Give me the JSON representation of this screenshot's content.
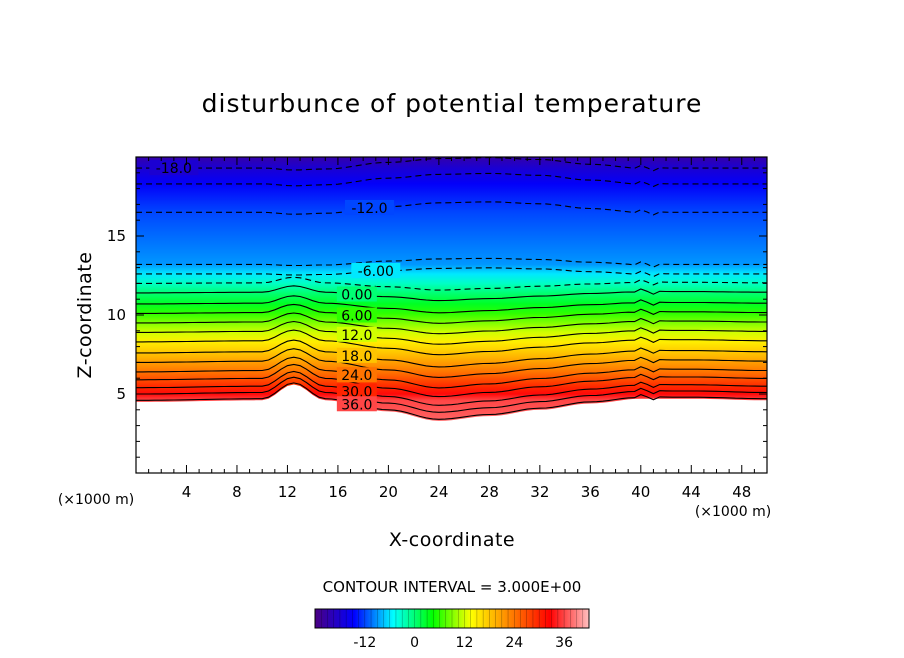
{
  "chart_data": {
    "type": "heatmap",
    "title": "disturbunce of potential temperature",
    "xlabel": "X-coordinate",
    "ylabel": "Z-coordinate",
    "x_unit": "(×1000 m)",
    "xlim": [
      0,
      50
    ],
    "ylim": [
      0,
      20
    ],
    "x_ticks": [
      "4",
      "8",
      "12",
      "16",
      "20",
      "24",
      "28",
      "32",
      "36",
      "40",
      "44",
      "48"
    ],
    "y_ticks": [
      "5",
      "10",
      "15"
    ],
    "contour_interval_text": "CONTOUR INTERVAL = 3.000E+00",
    "contour_labels": [
      "-18.0",
      "-12.0",
      "-6.00",
      "0.00",
      "6.00",
      "12.0",
      "18.0",
      "24.0",
      "30.0",
      "36.0"
    ],
    "colorbar": {
      "range": [
        -24,
        42
      ],
      "ticks": [
        "-12",
        "0",
        "12",
        "24",
        "36"
      ],
      "colors": [
        "#4b0082",
        "#0000ff",
        "#00ffff",
        "#00ff00",
        "#ffff00",
        "#ff8000",
        "#ff0000",
        "#ffc0c0"
      ]
    },
    "profile": [
      {
        "x": 0,
        "terrain": 4.5,
        "top_shift": 0
      },
      {
        "x": 10,
        "terrain": 4.6,
        "top_shift": 0
      },
      {
        "x": 12.5,
        "terrain": 5.6,
        "top_shift": 0.2
      },
      {
        "x": 15,
        "terrain": 4.6,
        "top_shift": 0.1
      },
      {
        "x": 20,
        "terrain": 3.9,
        "top_shift": -0.6
      },
      {
        "x": 24,
        "terrain": 3.3,
        "top_shift": -1.0
      },
      {
        "x": 28,
        "terrain": 3.6,
        "top_shift": -1.1
      },
      {
        "x": 32,
        "terrain": 4.0,
        "top_shift": -0.9
      },
      {
        "x": 36,
        "terrain": 4.4,
        "top_shift": -0.4
      },
      {
        "x": 40,
        "terrain": 4.7,
        "top_shift": 0
      },
      {
        "x": 44,
        "terrain": 4.7,
        "top_shift": 0
      },
      {
        "x": 50,
        "terrain": 4.6,
        "top_shift": 0
      }
    ],
    "contours": [
      {
        "value": -18,
        "z": 19.3,
        "dashed": true,
        "labeled": true
      },
      {
        "value": -15,
        "z": 18.3,
        "dashed": true,
        "labeled": false
      },
      {
        "value": -12,
        "z": 16.5,
        "dashed": true,
        "labeled": true
      },
      {
        "value": -9,
        "z": 13.2,
        "dashed": true,
        "labeled": false
      },
      {
        "value": -6,
        "z": 12.6,
        "dashed": true,
        "labeled": true
      },
      {
        "value": -3,
        "z": 12.0,
        "dashed": true,
        "labeled": false
      },
      {
        "value": 0,
        "z": 11.4,
        "dashed": false,
        "labeled": true
      },
      {
        "value": 3,
        "z": 10.7,
        "dashed": false,
        "labeled": false
      },
      {
        "value": 6,
        "z": 10.1,
        "dashed": false,
        "labeled": true
      },
      {
        "value": 9,
        "z": 9.5,
        "dashed": false,
        "labeled": false
      },
      {
        "value": 12,
        "z": 8.9,
        "dashed": false,
        "labeled": true
      },
      {
        "value": 15,
        "z": 8.3,
        "dashed": false,
        "labeled": false
      },
      {
        "value": 18,
        "z": 7.6,
        "dashed": false,
        "labeled": true
      },
      {
        "value": 21,
        "z": 7.0,
        "dashed": false,
        "labeled": false
      },
      {
        "value": 24,
        "z": 6.4,
        "dashed": false,
        "labeled": true
      },
      {
        "value": 27,
        "z": 5.9,
        "dashed": false,
        "labeled": false
      },
      {
        "value": 30,
        "z": 5.4,
        "dashed": false,
        "labeled": true
      },
      {
        "value": 33,
        "z": 5.0,
        "dashed": false,
        "labeled": false
      },
      {
        "value": 36,
        "z": 4.6,
        "dashed": false,
        "labeled": true
      }
    ]
  }
}
